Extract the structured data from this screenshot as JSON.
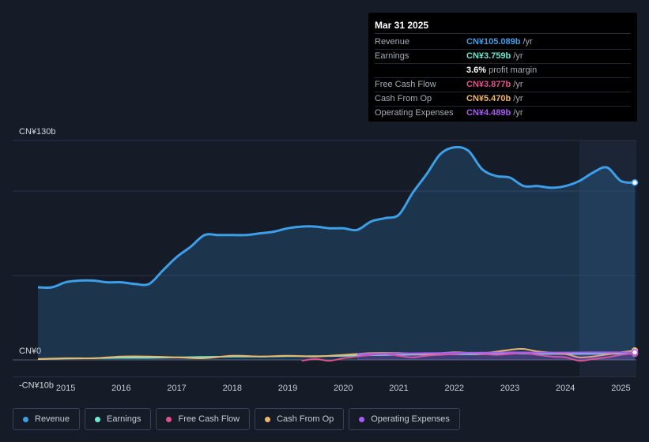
{
  "tooltip": {
    "date": "Mar 31 2025",
    "rows": [
      {
        "label": "Revenue",
        "value": "CN¥105.089b",
        "unit": "/yr",
        "color": "#3d9fe8"
      },
      {
        "label": "Earnings",
        "value": "CN¥3.759b",
        "unit": "/yr",
        "color": "#6ee7d3"
      },
      {
        "label": "",
        "value": "3.6%",
        "unit": "profit margin",
        "color": "#ffffff"
      },
      {
        "label": "Free Cash Flow",
        "value": "CN¥3.877b",
        "unit": "/yr",
        "color": "#e0508c"
      },
      {
        "label": "Cash From Op",
        "value": "CN¥5.470b",
        "unit": "/yr",
        "color": "#f0b56a"
      },
      {
        "label": "Operating Expenses",
        "value": "CN¥4.489b",
        "unit": "/yr",
        "color": "#a65bf2"
      }
    ]
  },
  "legend": [
    {
      "label": "Revenue",
      "color": "#3d9fe8"
    },
    {
      "label": "Earnings",
      "color": "#6ee7d3"
    },
    {
      "label": "Free Cash Flow",
      "color": "#e0508c"
    },
    {
      "label": "Cash From Op",
      "color": "#f0b56a"
    },
    {
      "label": "Operating Expenses",
      "color": "#a65bf2"
    }
  ],
  "chart_data": {
    "type": "line",
    "title": "",
    "xlabel": "",
    "ylabel": "",
    "ylim": [
      -10,
      130
    ],
    "y_labels": [
      "CN¥130b",
      "CN¥0",
      "-CN¥10b"
    ],
    "x_tick_labels": [
      "2015",
      "2016",
      "2017",
      "2018",
      "2019",
      "2020",
      "2021",
      "2022",
      "2023",
      "2024",
      "2025"
    ],
    "x_range": [
      2014.5,
      2025.25
    ],
    "highlight_from": 2024.25,
    "grid": true,
    "legend_position": "bottom",
    "series": [
      {
        "name": "Revenue",
        "color": "#3d9fe8",
        "x": [
          2014.5,
          2014.75,
          2015.0,
          2015.25,
          2015.5,
          2015.75,
          2016.0,
          2016.25,
          2016.5,
          2016.75,
          2017.0,
          2017.25,
          2017.5,
          2017.75,
          2018.0,
          2018.25,
          2018.5,
          2018.75,
          2019.0,
          2019.25,
          2019.5,
          2019.75,
          2020.0,
          2020.25,
          2020.5,
          2020.75,
          2021.0,
          2021.25,
          2021.5,
          2021.75,
          2022.0,
          2022.25,
          2022.5,
          2022.75,
          2023.0,
          2023.25,
          2023.5,
          2023.75,
          2024.0,
          2024.25,
          2024.5,
          2024.75,
          2025.0,
          2025.25
        ],
        "values": [
          43,
          43,
          46,
          47,
          47,
          46,
          46,
          45,
          45,
          53,
          61,
          67,
          74,
          74,
          74,
          74,
          75,
          76,
          78,
          79,
          79,
          78,
          78,
          77,
          82,
          84,
          86,
          99,
          110,
          122,
          126,
          124,
          113,
          109,
          108,
          103,
          103,
          102,
          103,
          106,
          111,
          114,
          106,
          105.089
        ]
      },
      {
        "name": "Earnings",
        "color": "#6ee7d3",
        "x": [
          2014.5,
          2015.0,
          2015.5,
          2016.0,
          2016.5,
          2017.0,
          2017.5,
          2018.0,
          2018.5,
          2019.0,
          2019.5,
          2020.0,
          2020.5,
          2021.0,
          2021.5,
          2022.0,
          2022.5,
          2023.0,
          2023.5,
          2024.0,
          2024.5,
          2025.0,
          2025.25
        ],
        "values": [
          0.5,
          0.8,
          1.0,
          1.2,
          1.2,
          1.5,
          1.8,
          2.0,
          2.0,
          2.2,
          2.2,
          2.4,
          2.8,
          3.0,
          3.2,
          3.3,
          3.4,
          3.8,
          3.6,
          3.5,
          3.6,
          3.7,
          3.759
        ]
      },
      {
        "name": "Free Cash Flow",
        "color": "#e0508c",
        "x": [
          2019.25,
          2019.5,
          2019.75,
          2020.0,
          2020.25,
          2020.5,
          2020.75,
          2021.0,
          2021.25,
          2021.5,
          2021.75,
          2022.0,
          2022.25,
          2022.5,
          2022.75,
          2023.0,
          2023.25,
          2023.5,
          2023.75,
          2024.0,
          2024.25,
          2024.5,
          2024.75,
          2025.0,
          2025.25
        ],
        "values": [
          -0.5,
          0.5,
          -0.5,
          1.0,
          2.0,
          3.0,
          3.5,
          2.5,
          1.5,
          2.5,
          3.0,
          3.5,
          4.0,
          3.5,
          3.0,
          3.5,
          4.0,
          3.0,
          2.0,
          1.5,
          -0.5,
          0.5,
          1.5,
          3.0,
          3.877
        ]
      },
      {
        "name": "Cash From Op",
        "color": "#f0b56a",
        "x": [
          2014.5,
          2015.0,
          2015.5,
          2016.0,
          2016.5,
          2017.0,
          2017.5,
          2018.0,
          2018.5,
          2019.0,
          2019.5,
          2020.0,
          2020.5,
          2021.0,
          2021.5,
          2022.0,
          2022.5,
          2023.0,
          2023.25,
          2023.5,
          2024.0,
          2024.25,
          2024.5,
          2025.0,
          2025.25
        ],
        "values": [
          0.5,
          1.0,
          1.0,
          2.0,
          2.0,
          1.5,
          1.0,
          2.5,
          2.0,
          2.5,
          2.0,
          3.0,
          4.0,
          4.0,
          3.5,
          4.5,
          4.0,
          6.0,
          6.5,
          5.0,
          3.5,
          1.5,
          2.0,
          4.5,
          5.47
        ]
      },
      {
        "name": "Operating Expenses",
        "color": "#a65bf2",
        "x": [
          2020.25,
          2020.5,
          2021.0,
          2021.5,
          2022.0,
          2022.5,
          2023.0,
          2023.5,
          2024.0,
          2024.5,
          2025.0,
          2025.25
        ],
        "values": [
          3.5,
          3.6,
          3.8,
          4.0,
          4.2,
          4.3,
          4.5,
          4.4,
          4.4,
          4.5,
          4.5,
          4.489
        ]
      }
    ]
  }
}
